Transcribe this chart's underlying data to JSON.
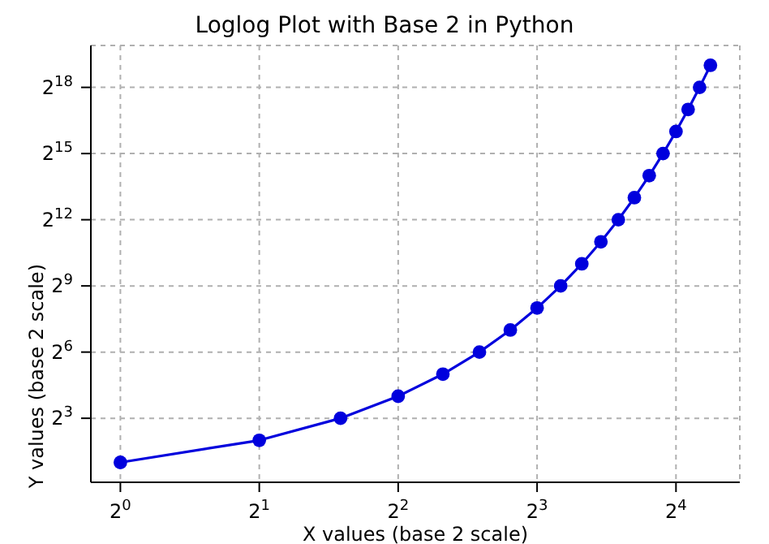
{
  "chart_data": {
    "type": "line",
    "title": "Loglog Plot with Base 2 in Python",
    "xlabel": "X values (base 2 scale)",
    "ylabel": "Y values (base 2 scale)",
    "x": [
      1,
      2,
      3,
      4,
      5,
      6,
      7,
      8,
      9,
      10,
      11,
      12,
      13,
      14,
      15,
      16,
      17,
      18,
      19
    ],
    "series": [
      {
        "color": "#0000dd",
        "values": [
          2,
          4,
          8,
          16,
          32,
          64,
          128,
          256,
          512,
          1024,
          2048,
          4096,
          8192,
          16384,
          32768,
          65536,
          131072,
          262144,
          524288
        ]
      }
    ],
    "log": "xy",
    "marker": "circle",
    "line_style": "solid",
    "grid": true,
    "xlim": [
      0.863,
      22.0
    ],
    "ylim": [
      1.07,
      978000
    ],
    "xticks": [
      {
        "value": 1,
        "label": "2$^{0}$"
      },
      {
        "value": 2,
        "label": "2$^{1}$"
      },
      {
        "value": 4,
        "label": "2$^{2}$"
      },
      {
        "value": 8,
        "label": "2$^{3}$"
      },
      {
        "value": 16,
        "label": "2$^{4}$"
      }
    ],
    "yticks": [
      {
        "value": 8,
        "label": "2$^{3}$"
      },
      {
        "value": 64,
        "label": "2$^{6}$"
      },
      {
        "value": 512,
        "label": "2$^{9}$"
      },
      {
        "value": 4096,
        "label": "2$^{12}$"
      },
      {
        "value": 32768,
        "label": "2$^{15}$"
      },
      {
        "value": 262144,
        "label": "2$^{18}$"
      }
    ]
  }
}
